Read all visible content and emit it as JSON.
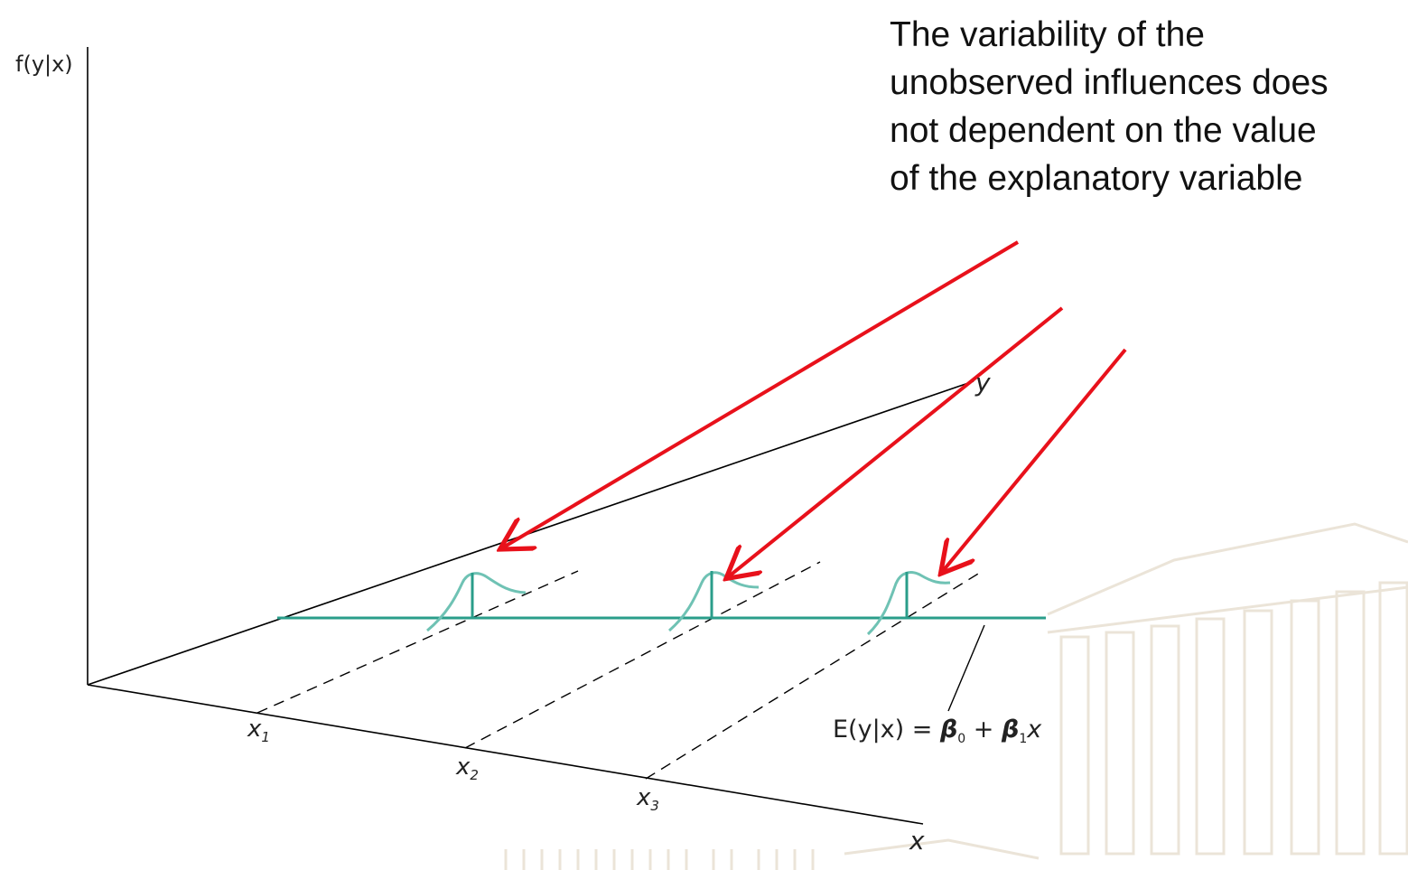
{
  "annotation": {
    "lines": [
      "The variability of the",
      "unobserved influences does",
      "not dependent on  the value",
      "of the explanatory variable"
    ]
  },
  "axes": {
    "vertical_label": "f(y|x)",
    "depth_label": "y",
    "horizontal_label": "x"
  },
  "x_ticks": [
    {
      "base": "x",
      "sub": "1"
    },
    {
      "base": "x",
      "sub": "2"
    },
    {
      "base": "x",
      "sub": "3"
    }
  ],
  "regression_label": {
    "prefix": "E(y|x) = ",
    "beta0": "β",
    "beta0_sub": "0",
    "plus": " + ",
    "beta1": "β",
    "beta1_sub": "1",
    "suffix": "x"
  },
  "colors": {
    "axis": "#000000",
    "regression_line": "#2a9d8a",
    "density_curve": "#6fc2b4",
    "arrow": "#e8111b",
    "background_building": "#ebe4d8"
  },
  "icons": {
    "arrow": "arrow-icon"
  }
}
